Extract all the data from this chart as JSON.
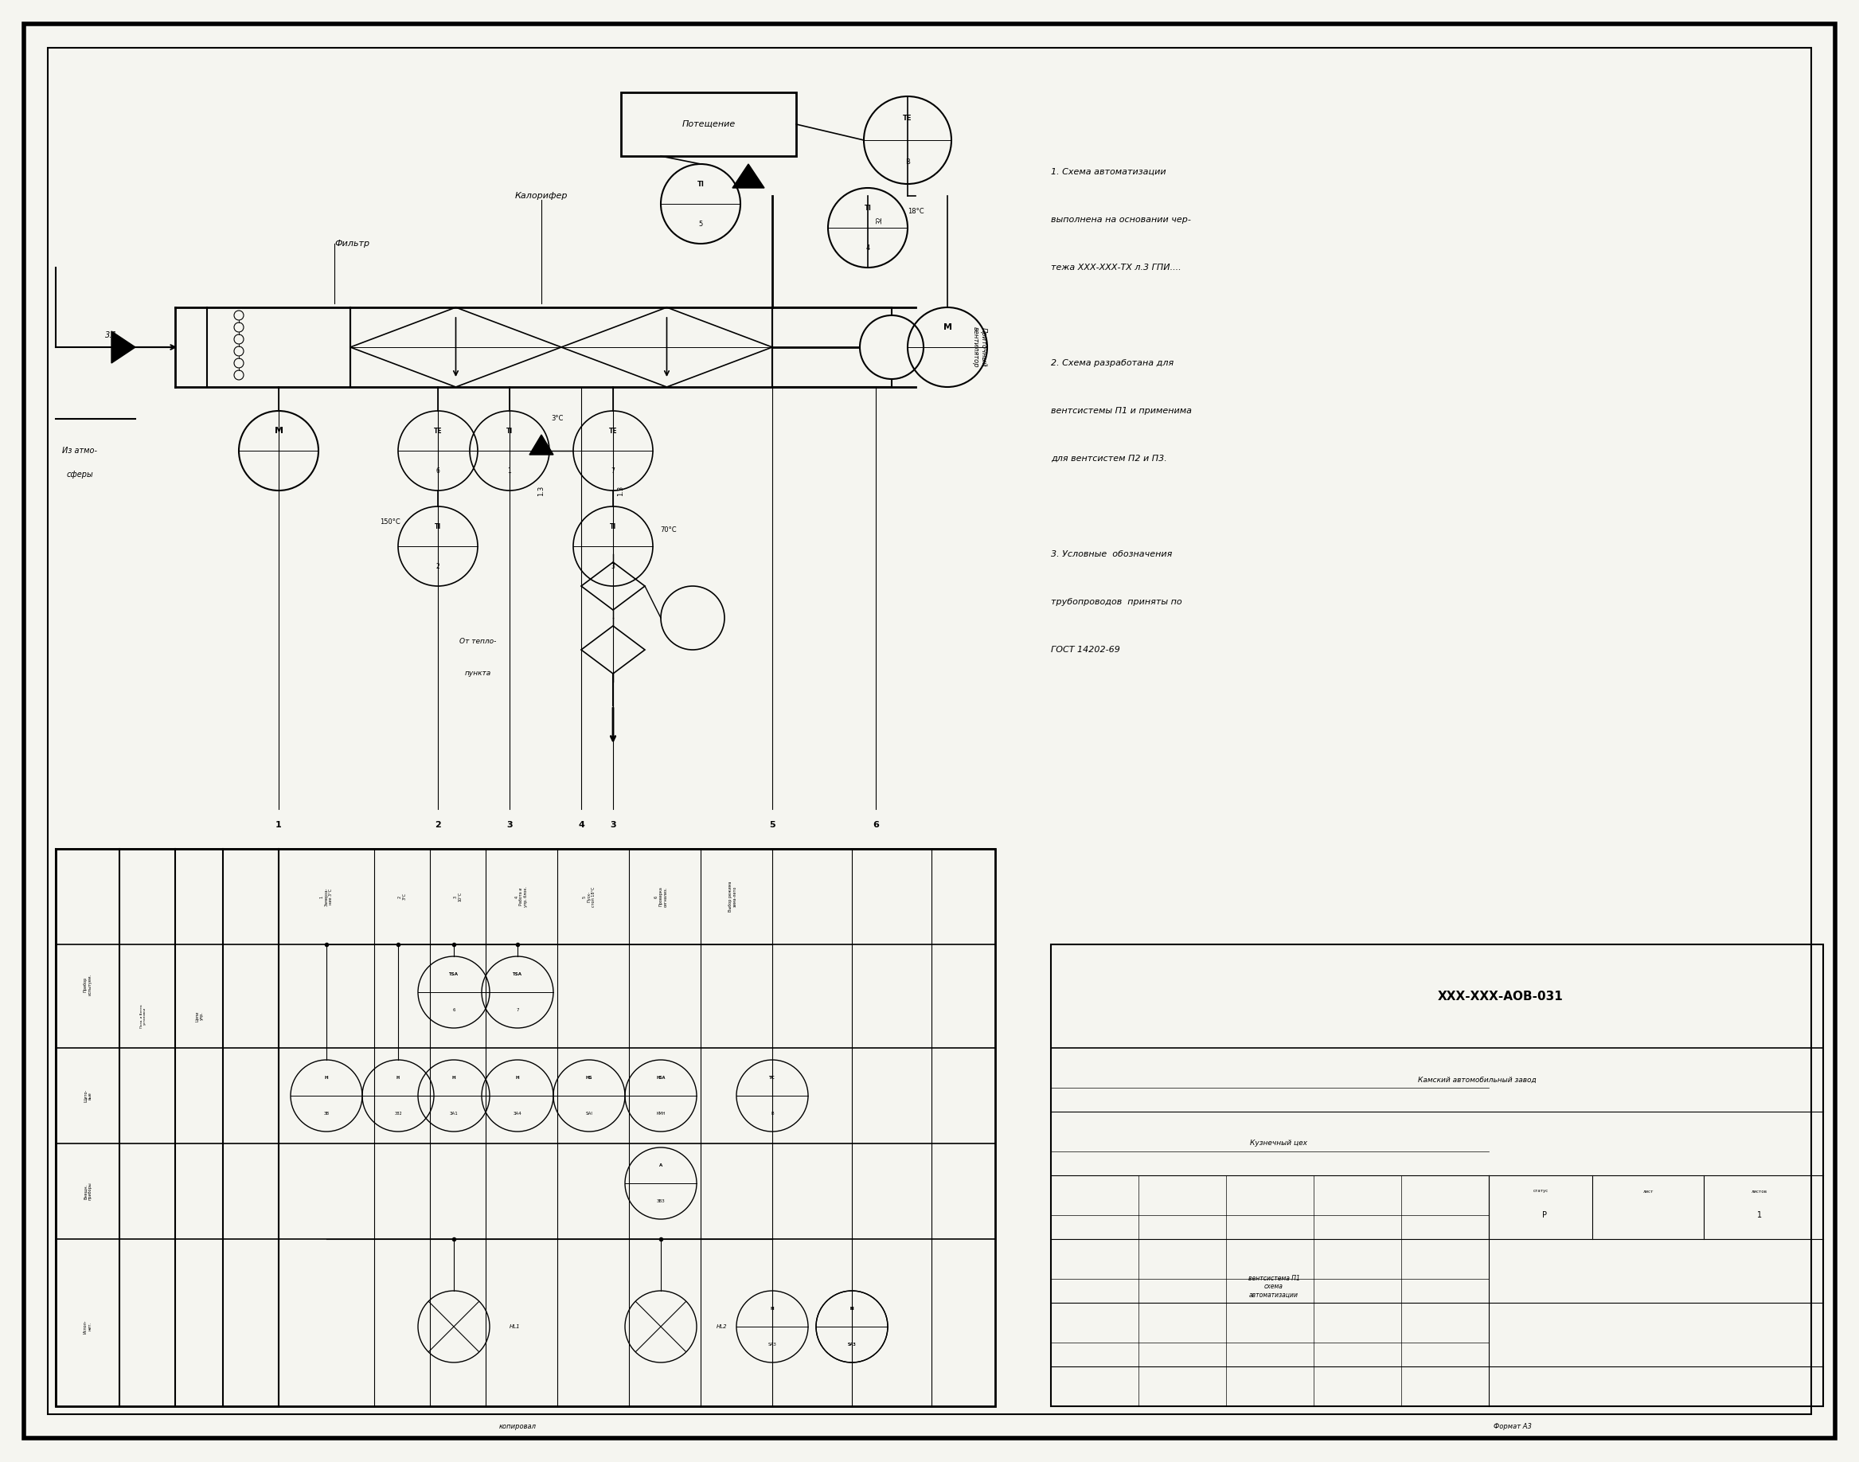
{
  "bg_color": "#f5f5f0",
  "line_color": "#000000",
  "notes": [
    "1. Схема автоматизации",
    "выполнена на основании чер-",
    "тежа ХХХ-ХХХ-ТХ л.3 ГПИ....",
    "",
    "2. Схема разработана для",
    "вентсистемы П1 и применима",
    "для вентсистем П2 и П3.",
    "",
    "3. Условные  обозначения",
    "трубопроводов  приняты по",
    "ГОСТ 14202-69"
  ],
  "stamp_title": "ХХХ-ХХХ-АОВ-031",
  "stamp_company": "Камский автомобильный завод",
  "stamp_dept": "Кузнечный цех",
  "stamp_status": "Р",
  "stamp_sheet": "1",
  "stamp_content": "вентсистема П1\nсхема\nавтоматизации",
  "stamp_copied": "копировал",
  "stamp_format": "Формат А3"
}
